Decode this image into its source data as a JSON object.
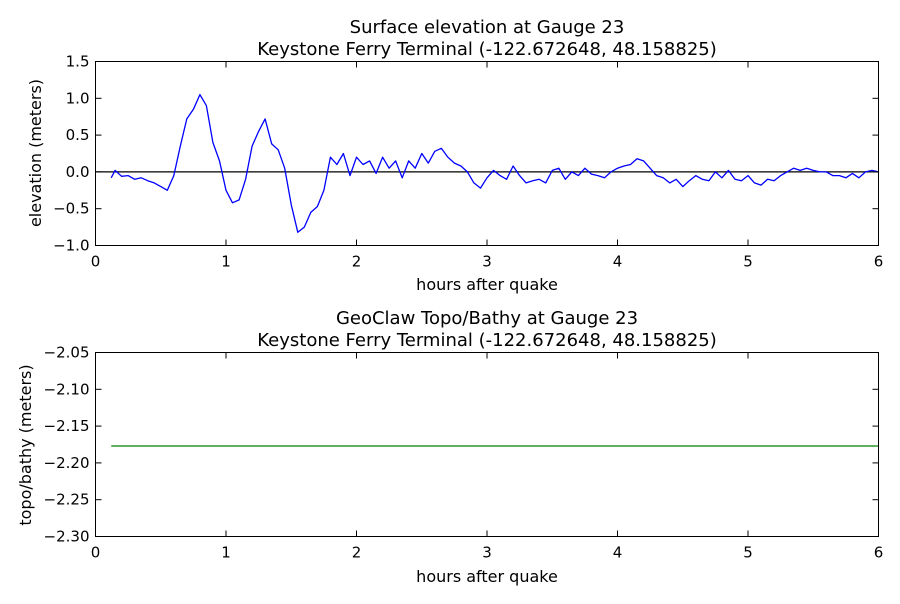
{
  "chart_data": [
    {
      "type": "line",
      "title": "Surface elevation at Gauge 23",
      "subtitle": "Keystone Ferry Terminal  (-122.672648, 48.158825)",
      "xlabel": "hours after quake",
      "ylabel": "elevation (meters)",
      "xlim": [
        0,
        6
      ],
      "ylim": [
        -1.0,
        1.5
      ],
      "xticks": [
        "0",
        "1",
        "2",
        "3",
        "4",
        "5",
        "6"
      ],
      "yticks": [
        "−1.0",
        "−0.5",
        "0.0",
        "0.5",
        "1.0",
        "1.5"
      ],
      "grid": false,
      "series": [
        {
          "color": "#0000ff",
          "x": [
            0.12,
            0.15,
            0.2,
            0.25,
            0.3,
            0.35,
            0.4,
            0.45,
            0.5,
            0.55,
            0.6,
            0.65,
            0.7,
            0.75,
            0.8,
            0.85,
            0.9,
            0.95,
            1.0,
            1.05,
            1.1,
            1.15,
            1.2,
            1.25,
            1.3,
            1.35,
            1.4,
            1.45,
            1.5,
            1.55,
            1.6,
            1.65,
            1.7,
            1.75,
            1.8,
            1.85,
            1.9,
            1.95,
            2.0,
            2.05,
            2.1,
            2.15,
            2.2,
            2.25,
            2.3,
            2.35,
            2.4,
            2.45,
            2.5,
            2.55,
            2.6,
            2.65,
            2.7,
            2.75,
            2.8,
            2.85,
            2.9,
            2.95,
            3.0,
            3.05,
            3.1,
            3.15,
            3.2,
            3.25,
            3.3,
            3.35,
            3.4,
            3.45,
            3.5,
            3.55,
            3.6,
            3.65,
            3.7,
            3.75,
            3.8,
            3.85,
            3.9,
            3.95,
            4.0,
            4.05,
            4.1,
            4.15,
            4.2,
            4.25,
            4.3,
            4.35,
            4.4,
            4.45,
            4.5,
            4.55,
            4.6,
            4.65,
            4.7,
            4.75,
            4.8,
            4.85,
            4.9,
            4.95,
            5.0,
            5.05,
            5.1,
            5.15,
            5.2,
            5.25,
            5.3,
            5.35,
            5.4,
            5.45,
            5.5,
            5.55,
            5.6,
            5.65,
            5.7,
            5.75,
            5.8,
            5.85,
            5.9,
            5.95,
            6.0
          ],
          "y": [
            -0.08,
            0.02,
            -0.06,
            -0.05,
            -0.1,
            -0.08,
            -0.12,
            -0.15,
            -0.2,
            -0.25,
            -0.05,
            0.35,
            0.72,
            0.85,
            1.05,
            0.9,
            0.4,
            0.15,
            -0.25,
            -0.42,
            -0.38,
            -0.1,
            0.35,
            0.55,
            0.72,
            0.38,
            0.3,
            0.05,
            -0.45,
            -0.82,
            -0.75,
            -0.55,
            -0.47,
            -0.25,
            0.2,
            0.1,
            0.25,
            -0.05,
            0.2,
            0.1,
            0.15,
            -0.02,
            0.2,
            0.05,
            0.15,
            -0.08,
            0.15,
            0.05,
            0.25,
            0.12,
            0.28,
            0.32,
            0.2,
            0.12,
            0.08,
            0.0,
            -0.15,
            -0.22,
            -0.08,
            0.02,
            -0.05,
            -0.1,
            0.08,
            -0.05,
            -0.15,
            -0.12,
            -0.1,
            -0.15,
            0.02,
            0.05,
            -0.1,
            0.0,
            -0.05,
            0.05,
            -0.03,
            -0.05,
            -0.08,
            0.0,
            0.05,
            0.08,
            0.1,
            0.18,
            0.15,
            0.05,
            -0.05,
            -0.08,
            -0.15,
            -0.1,
            -0.2,
            -0.12,
            -0.05,
            -0.1,
            -0.12,
            0.0,
            -0.08,
            0.02,
            -0.1,
            -0.12,
            -0.05,
            -0.15,
            -0.18,
            -0.1,
            -0.12,
            -0.05,
            0.0,
            0.05,
            0.02,
            0.05,
            0.02,
            0.0,
            0.0,
            -0.05,
            -0.05,
            -0.08,
            -0.02,
            -0.08,
            0.0,
            0.02,
            0.0
          ]
        }
      ],
      "reference_line": {
        "y": 0.0,
        "color": "#000000"
      }
    },
    {
      "type": "line",
      "title": "GeoClaw Topo/Bathy at Gauge 23",
      "subtitle": "Keystone Ferry Terminal  (-122.672648, 48.158825)",
      "xlabel": "hours after quake",
      "ylabel": "topo/bathy (meters)",
      "xlim": [
        0,
        6
      ],
      "ylim": [
        -2.3,
        -2.05
      ],
      "xticks": [
        "0",
        "1",
        "2",
        "3",
        "4",
        "5",
        "6"
      ],
      "yticks": [
        "−2.30",
        "−2.25",
        "−2.20",
        "−2.15",
        "−2.10",
        "−2.05"
      ],
      "grid": false,
      "series": [
        {
          "color": "#008000",
          "x": [
            0.12,
            6.0
          ],
          "y": [
            -2.177,
            -2.177
          ]
        }
      ]
    }
  ]
}
